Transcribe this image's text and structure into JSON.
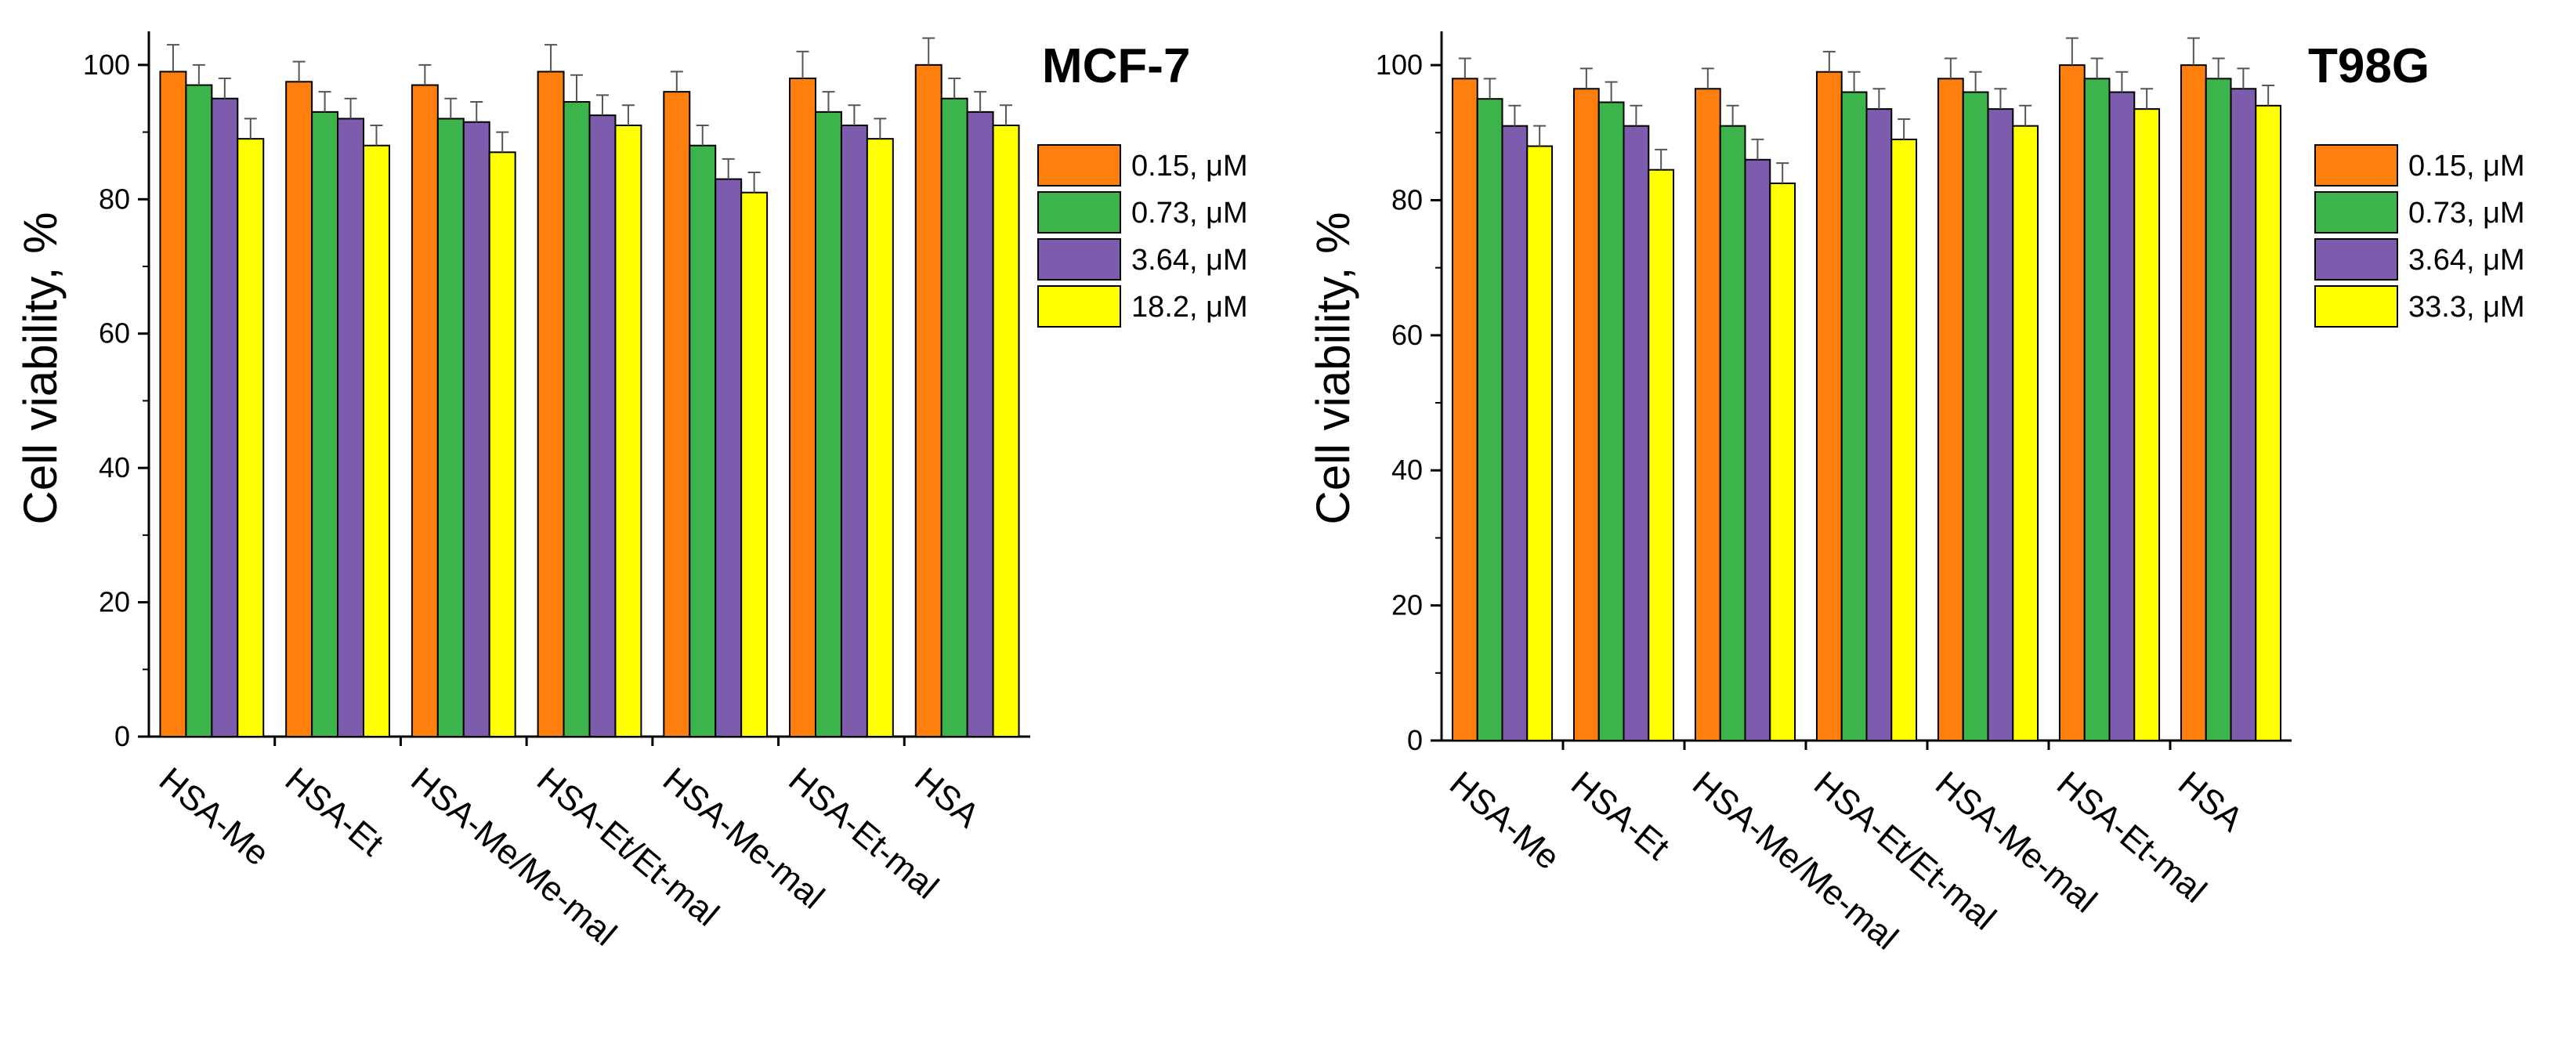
{
  "chart_data": [
    {
      "type": "bar",
      "title": "MCF-7",
      "ylabel": "Cell viability, %",
      "xlabel": "",
      "ylim": [
        0,
        105
      ],
      "yticks": [
        0,
        20,
        40,
        60,
        80,
        100
      ],
      "categories": [
        "HSA-Me",
        "HSA-Et",
        "HSA-Me/Me-mal",
        "HSA-Et/Et-mal",
        "HSA-Me-mal",
        "HSA-Et-mal",
        "HSA"
      ],
      "series": [
        {
          "name": "0.15, μM",
          "color": "#FF7F0E",
          "values": [
            99,
            97.5,
            97,
            99,
            96,
            98,
            100
          ],
          "errors": [
            4,
            3,
            3,
            4,
            3,
            4,
            4
          ]
        },
        {
          "name": "0.73, μM",
          "color": "#3CB44B",
          "values": [
            97,
            93,
            92,
            94.5,
            88,
            93,
            95
          ],
          "errors": [
            3,
            3,
            3,
            4,
            3,
            3,
            3
          ]
        },
        {
          "name": "3.64, μM",
          "color": "#7E5CAD",
          "values": [
            95,
            92,
            91.5,
            92.5,
            83,
            91,
            93
          ],
          "errors": [
            3,
            3,
            3,
            3,
            3,
            3,
            3
          ]
        },
        {
          "name": "18.2, μM",
          "color": "#FFFF00",
          "values": [
            89,
            88,
            87,
            91,
            81,
            89,
            91
          ],
          "errors": [
            3,
            3,
            3,
            3,
            3,
            3,
            3
          ]
        }
      ],
      "legend_position": "top-right"
    },
    {
      "type": "bar",
      "title": "T98G",
      "ylabel": "Cell viability, %",
      "xlabel": "",
      "ylim": [
        0,
        105
      ],
      "yticks": [
        0,
        20,
        40,
        60,
        80,
        100
      ],
      "categories": [
        "HSA-Me",
        "HSA-Et",
        "HSA-Me/Me-mal",
        "HSA-Et/Et-mal",
        "HSA-Me-mal",
        "HSA-Et-mal",
        "HSA"
      ],
      "series": [
        {
          "name": "0.15, μM",
          "color": "#FF7F0E",
          "values": [
            98,
            96.5,
            96.5,
            99,
            98,
            100,
            100
          ],
          "errors": [
            3,
            3,
            3,
            3,
            3,
            4,
            4
          ]
        },
        {
          "name": "0.73, μM",
          "color": "#3CB44B",
          "values": [
            95,
            94.5,
            91,
            96,
            96,
            98,
            98
          ],
          "errors": [
            3,
            3,
            3,
            3,
            3,
            3,
            3
          ]
        },
        {
          "name": "3.64, μM",
          "color": "#7E5CAD",
          "values": [
            91,
            91,
            86,
            93.5,
            93.5,
            96,
            96.5
          ],
          "errors": [
            3,
            3,
            3,
            3,
            3,
            3,
            3
          ]
        },
        {
          "name": "33.3, μM",
          "color": "#FFFF00",
          "values": [
            88,
            84.5,
            82.5,
            89,
            91,
            93.5,
            94
          ],
          "errors": [
            3,
            3,
            3,
            3,
            3,
            3,
            3
          ]
        }
      ],
      "legend_position": "top-right"
    }
  ]
}
